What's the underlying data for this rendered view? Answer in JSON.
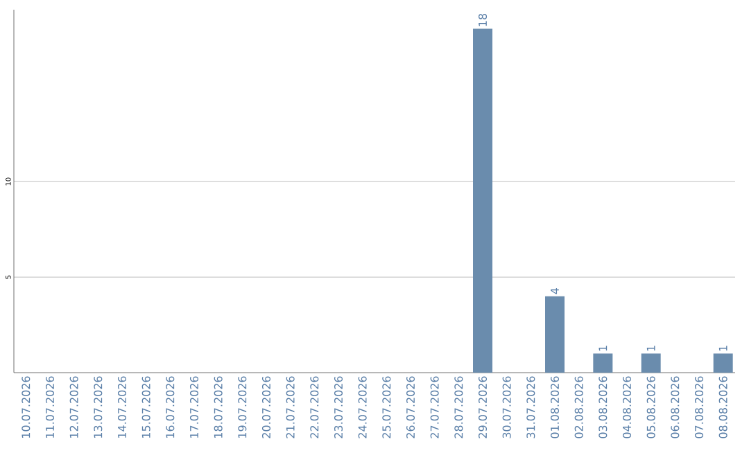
{
  "chart_data": {
    "type": "bar",
    "categories": [
      "10.07.2026",
      "11.07.2026",
      "12.07.2026",
      "13.07.2026",
      "14.07.2026",
      "15.07.2026",
      "16.07.2026",
      "17.07.2026",
      "18.07.2026",
      "19.07.2026",
      "20.07.2026",
      "21.07.2026",
      "22.07.2026",
      "23.07.2026",
      "24.07.2026",
      "25.07.2026",
      "26.07.2026",
      "27.07.2026",
      "28.07.2026",
      "29.07.2026",
      "30.07.2026",
      "31.07.2026",
      "01.08.2026",
      "02.08.2026",
      "03.08.2026",
      "04.08.2026",
      "05.08.2026",
      "06.08.2026",
      "07.08.2026",
      "08.08.2026"
    ],
    "values": [
      0,
      0,
      0,
      0,
      0,
      0,
      0,
      0,
      0,
      0,
      0,
      0,
      0,
      0,
      0,
      0,
      0,
      0,
      0,
      18,
      0,
      0,
      4,
      0,
      1,
      0,
      1,
      0,
      0,
      1
    ],
    "value_labels": [
      null,
      null,
      null,
      null,
      null,
      null,
      null,
      null,
      null,
      null,
      null,
      null,
      null,
      null,
      null,
      null,
      null,
      null,
      null,
      "18",
      null,
      null,
      "4",
      null,
      "1",
      null,
      "1",
      null,
      null,
      "1"
    ],
    "color": "#6a8cad",
    "ylim": [
      0,
      19
    ],
    "yticks": [
      5,
      10
    ],
    "grid": "y"
  }
}
